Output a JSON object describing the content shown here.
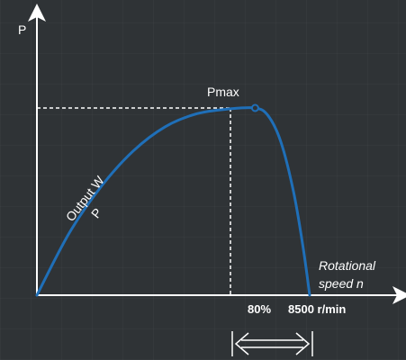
{
  "chart_data": {
    "type": "line",
    "title": "",
    "ylabel": "P",
    "xlabel_line1": "Rotational",
    "xlabel_line2": "speed n",
    "peak_label": "Pmax",
    "curve_label_line1": "Output W",
    "curve_label_line2": "P",
    "tick_80": "80%",
    "tick_max": "8500 r/min",
    "x_max_rpm": 8500,
    "peak_fraction": 0.8,
    "xlim": [
      0,
      8500
    ],
    "ylim": [
      0,
      1
    ],
    "series": [
      {
        "x": [
          0,
          1000,
          2000,
          3000,
          4000,
          5000,
          6000,
          6800,
          7200,
          7600,
          8000,
          8300,
          8500
        ],
        "values": [
          0,
          0.33,
          0.58,
          0.77,
          0.9,
          0.97,
          0.995,
          1.0,
          0.96,
          0.82,
          0.55,
          0.25,
          0
        ]
      }
    ],
    "colors": {
      "background": "#2f3336",
      "curve": "#1f6fb8",
      "axes": "#ffffff",
      "guides": "#ffffff"
    },
    "range_bracket": "80%–100% of max speed",
    "grid": false
  }
}
